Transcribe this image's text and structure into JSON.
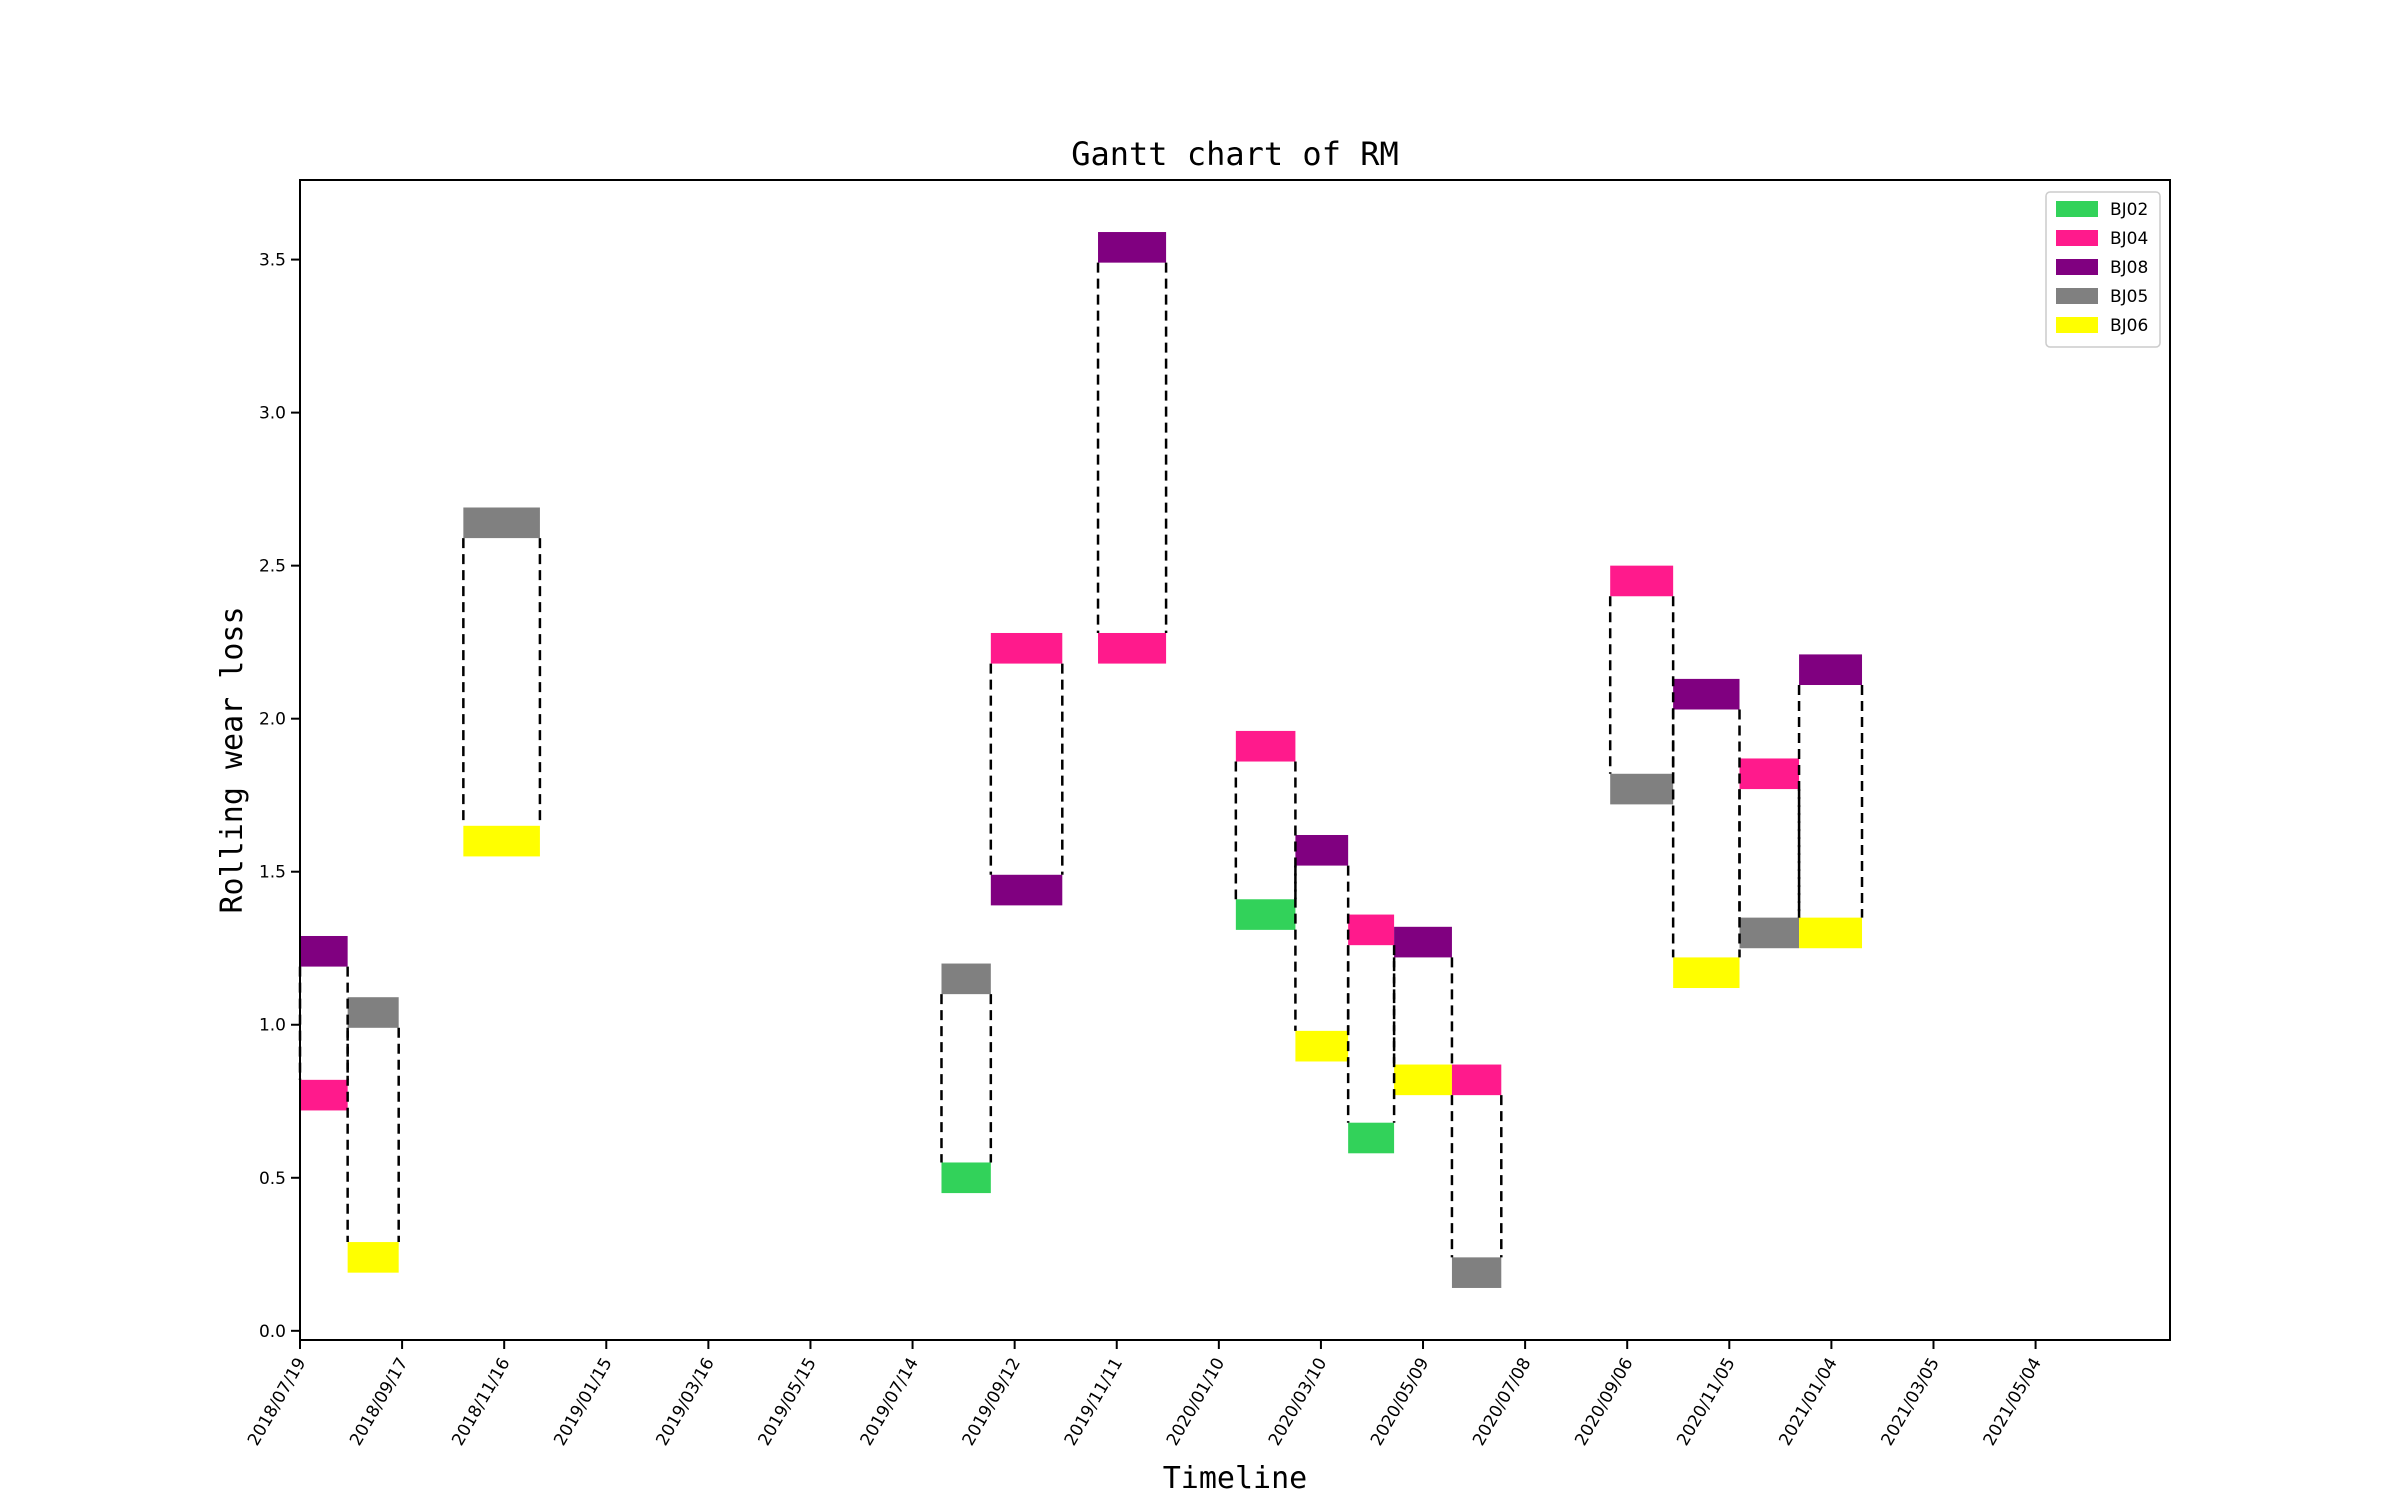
{
  "chart_data": {
    "type": "gantt",
    "title": "Gantt chart of RM",
    "xlabel": "Timeline",
    "ylabel": "Rolling wear loss",
    "x_ticks": [
      "2018/07/19",
      "2018/09/17",
      "2018/11/16",
      "2019/01/15",
      "2019/03/16",
      "2019/05/15",
      "2019/07/14",
      "2019/09/12",
      "2019/11/11",
      "2020/01/10",
      "2020/03/10",
      "2020/05/09",
      "2020/07/08",
      "2020/09/06",
      "2020/11/05",
      "2021/01/04",
      "2021/03/05",
      "2021/05/04"
    ],
    "x_range": [
      "2018/07/19",
      "2021/07/22"
    ],
    "y_ticks": [
      "0.0",
      "0.5",
      "1.0",
      "1.5",
      "2.0",
      "2.5",
      "3.0",
      "3.5"
    ],
    "y_range": [
      -0.03,
      3.76
    ],
    "grid": false,
    "legend_position": "top-right",
    "series": [
      {
        "name": "BJ02",
        "color": "#32d25a"
      },
      {
        "name": "BJ04",
        "color": "#ff1a8c"
      },
      {
        "name": "BJ08",
        "color": "#800080"
      },
      {
        "name": "BJ05",
        "color": "#808080"
      },
      {
        "name": "BJ06",
        "color": "#ffff00"
      }
    ],
    "bar_thickness": 0.1,
    "bars": [
      {
        "series": "BJ08",
        "start": "2018/07/19",
        "end": "2018/08/16",
        "y": 1.24
      },
      {
        "series": "BJ04",
        "start": "2018/07/19",
        "end": "2018/08/16",
        "y": 0.77
      },
      {
        "series": "BJ05",
        "start": "2018/08/16",
        "end": "2018/09/15",
        "y": 1.04
      },
      {
        "series": "BJ06",
        "start": "2018/08/16",
        "end": "2018/09/15",
        "y": 0.24
      },
      {
        "series": "BJ05",
        "start": "2018/10/23",
        "end": "2018/12/07",
        "y": 2.64
      },
      {
        "series": "BJ06",
        "start": "2018/10/23",
        "end": "2018/12/07",
        "y": 1.6
      },
      {
        "series": "BJ05",
        "start": "2019/07/31",
        "end": "2019/08/29",
        "y": 1.15
      },
      {
        "series": "BJ02",
        "start": "2019/07/31",
        "end": "2019/08/29",
        "y": 0.5
      },
      {
        "series": "BJ04",
        "start": "2019/08/29",
        "end": "2019/10/10",
        "y": 2.23
      },
      {
        "series": "BJ08",
        "start": "2019/08/29",
        "end": "2019/10/10",
        "y": 1.44
      },
      {
        "series": "BJ08",
        "start": "2019/10/31",
        "end": "2019/12/10",
        "y": 3.54
      },
      {
        "series": "BJ04",
        "start": "2019/10/31",
        "end": "2019/12/10",
        "y": 2.23
      },
      {
        "series": "BJ04",
        "start": "2020/01/20",
        "end": "2020/02/24",
        "y": 1.91
      },
      {
        "series": "BJ02",
        "start": "2020/01/20",
        "end": "2020/02/24",
        "y": 1.36
      },
      {
        "series": "BJ08",
        "start": "2020/02/24",
        "end": "2020/03/26",
        "y": 1.57
      },
      {
        "series": "BJ06",
        "start": "2020/02/24",
        "end": "2020/03/26",
        "y": 0.93
      },
      {
        "series": "BJ04",
        "start": "2020/03/26",
        "end": "2020/04/22",
        "y": 1.31
      },
      {
        "series": "BJ02",
        "start": "2020/03/26",
        "end": "2020/04/22",
        "y": 0.63
      },
      {
        "series": "BJ08",
        "start": "2020/04/22",
        "end": "2020/05/26",
        "y": 1.27
      },
      {
        "series": "BJ06",
        "start": "2020/04/22",
        "end": "2020/05/26",
        "y": 0.82
      },
      {
        "series": "BJ04",
        "start": "2020/05/26",
        "end": "2020/06/24",
        "y": 0.82
      },
      {
        "series": "BJ05",
        "start": "2020/05/26",
        "end": "2020/06/24",
        "y": 0.19
      },
      {
        "series": "BJ04",
        "start": "2020/08/27",
        "end": "2020/10/03",
        "y": 2.45
      },
      {
        "series": "BJ05",
        "start": "2020/08/27",
        "end": "2020/10/03",
        "y": 1.77
      },
      {
        "series": "BJ08",
        "start": "2020/10/03",
        "end": "2020/11/11",
        "y": 2.08
      },
      {
        "series": "BJ06",
        "start": "2020/10/03",
        "end": "2020/11/11",
        "y": 1.17
      },
      {
        "series": "BJ04",
        "start": "2020/11/11",
        "end": "2020/12/16",
        "y": 1.82
      },
      {
        "series": "BJ05",
        "start": "2020/11/11",
        "end": "2020/12/16",
        "y": 1.3
      },
      {
        "series": "BJ08",
        "start": "2020/12/16",
        "end": "2021/01/22",
        "y": 2.16
      },
      {
        "series": "BJ06",
        "start": "2020/12/16",
        "end": "2021/01/22",
        "y": 1.3
      }
    ]
  }
}
